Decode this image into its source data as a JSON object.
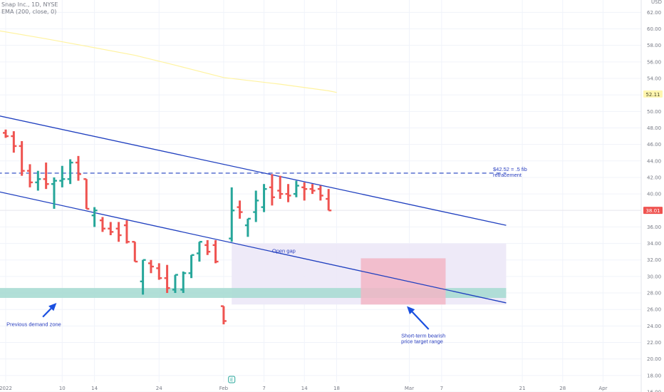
{
  "header": {
    "symbol_line": "Snap Inc., 1D, NYSE",
    "ema_line": "EMA (200, close, 0)",
    "currency": "USD"
  },
  "colors": {
    "up": "#26a69a",
    "down": "#ef5350",
    "channel": "#1f3fbf",
    "ema": "#fff3a0",
    "gap_zone": "#ece8f7",
    "demand_zone": "#a8dcd3",
    "target_zone": "#f2b6c6",
    "annotation": "#2a3fbf",
    "grid": "#f0f3fa",
    "axis_text": "#787b86"
  },
  "chart_data": {
    "type": "candlestick",
    "ylim": [
      16,
      63.5
    ],
    "y_ticks": [
      16,
      18,
      20,
      22,
      24,
      26,
      28,
      30,
      32,
      34,
      36,
      38,
      40,
      42,
      44,
      46,
      48,
      50,
      52,
      54,
      56,
      58,
      60,
      62
    ],
    "x_ticks": [
      {
        "label": "2022",
        "bar": 0
      },
      {
        "label": "10",
        "bar": 7
      },
      {
        "label": "14",
        "bar": 11
      },
      {
        "label": "24",
        "bar": 19
      },
      {
        "label": "Feb",
        "bar": 27
      },
      {
        "label": "7",
        "bar": 32
      },
      {
        "label": "14",
        "bar": 37
      },
      {
        "label": "18",
        "bar": 41
      },
      {
        "label": "Mar",
        "bar": 50
      },
      {
        "label": "7",
        "bar": 54
      },
      {
        "label": "21",
        "bar": 64
      },
      {
        "label": "28",
        "bar": 69
      },
      {
        "label": "Apr",
        "bar": 74
      }
    ],
    "bars": [
      {
        "o": 47.4,
        "h": 47.8,
        "l": 46.8,
        "c": 47.0
      },
      {
        "o": 47.0,
        "h": 47.6,
        "l": 45.0,
        "c": 45.8
      },
      {
        "o": 45.8,
        "h": 46.4,
        "l": 42.2,
        "c": 42.8
      },
      {
        "o": 42.8,
        "h": 43.6,
        "l": 40.8,
        "c": 41.4
      },
      {
        "o": 41.4,
        "h": 42.8,
        "l": 40.4,
        "c": 41.8
      },
      {
        "o": 41.8,
        "h": 43.8,
        "l": 40.6,
        "c": 41.2
      },
      {
        "o": 41.2,
        "h": 42.0,
        "l": 38.2,
        "c": 41.6
      },
      {
        "o": 41.6,
        "h": 43.4,
        "l": 40.8,
        "c": 41.8
      },
      {
        "o": 41.8,
        "h": 44.2,
        "l": 41.2,
        "c": 43.8
      },
      {
        "o": 43.8,
        "h": 44.6,
        "l": 41.6,
        "c": 42.4
      },
      {
        "o": 41.8,
        "h": 41.8,
        "l": 38.2,
        "c": 38.2
      },
      {
        "o": 37.4,
        "h": 38.4,
        "l": 36.0,
        "c": 38.0
      },
      {
        "o": 36.8,
        "h": 37.2,
        "l": 35.4,
        "c": 35.8
      },
      {
        "o": 35.8,
        "h": 36.6,
        "l": 35.0,
        "c": 35.4
      },
      {
        "o": 35.8,
        "h": 36.6,
        "l": 34.2,
        "c": 35.0
      },
      {
        "o": 36.2,
        "h": 36.8,
        "l": 34.0,
        "c": 34.2
      },
      {
        "o": 34.2,
        "h": 34.2,
        "l": 31.8,
        "c": 31.8
      },
      {
        "o": 29.4,
        "h": 32.0,
        "l": 27.8,
        "c": 32.0
      },
      {
        "o": 31.6,
        "h": 32.0,
        "l": 30.4,
        "c": 31.2
      },
      {
        "o": 31.0,
        "h": 31.6,
        "l": 29.6,
        "c": 29.8
      },
      {
        "o": 29.8,
        "h": 31.4,
        "l": 28.0,
        "c": 28.6
      },
      {
        "o": 28.4,
        "h": 30.2,
        "l": 28.0,
        "c": 30.2
      },
      {
        "o": 28.4,
        "h": 30.6,
        "l": 28.0,
        "c": 30.4
      },
      {
        "o": 30.4,
        "h": 32.6,
        "l": 29.8,
        "c": 32.6
      },
      {
        "o": 32.8,
        "h": 34.2,
        "l": 31.8,
        "c": 34.2
      },
      {
        "o": 33.8,
        "h": 34.4,
        "l": 32.6,
        "c": 33.0
      },
      {
        "o": 33.8,
        "h": 34.4,
        "l": 31.6,
        "c": 31.8
      },
      {
        "o": 26.4,
        "h": 26.4,
        "l": 24.2,
        "c": 24.6
      },
      {
        "o": 34.6,
        "h": 40.8,
        "l": 34.2,
        "c": 38.0
      },
      {
        "o": 38.4,
        "h": 39.2,
        "l": 37.0,
        "c": 37.8
      },
      {
        "o": 36.2,
        "h": 37.0,
        "l": 34.8,
        "c": 37.0
      },
      {
        "o": 37.8,
        "h": 40.4,
        "l": 36.6,
        "c": 39.2
      },
      {
        "o": 38.4,
        "h": 41.2,
        "l": 37.8,
        "c": 40.6
      },
      {
        "o": 40.8,
        "h": 42.4,
        "l": 38.6,
        "c": 39.6
      },
      {
        "o": 40.4,
        "h": 42.2,
        "l": 39.4,
        "c": 40.0
      },
      {
        "o": 40.0,
        "h": 41.2,
        "l": 39.0,
        "c": 39.8
      },
      {
        "o": 40.0,
        "h": 41.6,
        "l": 39.6,
        "c": 41.0
      },
      {
        "o": 40.8,
        "h": 41.4,
        "l": 39.2,
        "c": 40.6
      },
      {
        "o": 40.6,
        "h": 41.2,
        "l": 40.0,
        "c": 40.4
      },
      {
        "o": 40.6,
        "h": 41.0,
        "l": 39.2,
        "c": 39.8
      },
      {
        "o": 39.4,
        "h": 40.6,
        "l": 38.0,
        "c": 38.0
      }
    ],
    "ema": [
      {
        "bar": -1,
        "v": 59.8
      },
      {
        "bar": 5,
        "v": 58.8
      },
      {
        "bar": 10,
        "v": 57.9
      },
      {
        "bar": 16,
        "v": 56.8
      },
      {
        "bar": 21,
        "v": 55.6
      },
      {
        "bar": 27,
        "v": 54.1
      },
      {
        "bar": 34,
        "v": 53.3
      },
      {
        "bar": 40,
        "v": 52.5
      },
      {
        "bar": 41,
        "v": 52.3
      }
    ],
    "channel_upper": [
      {
        "bar": -1,
        "v": 49.5
      },
      {
        "bar": 62,
        "v": 36.2
      }
    ],
    "channel_lower": [
      {
        "bar": -1,
        "v": 40.3
      },
      {
        "bar": 62,
        "v": 26.8
      }
    ],
    "fib_level": {
      "value": 42.52,
      "from_bar": -1,
      "to_bar": 62,
      "label_lines": [
        "$42.52 = .5 fib",
        "retracement"
      ]
    },
    "zones": [
      {
        "name": "open-gap-zone",
        "from_bar": 28,
        "to_bar": 62,
        "top": 34.0,
        "bottom": 26.6,
        "label": "Open gap"
      },
      {
        "name": "demand-zone",
        "from_bar": -1,
        "to_bar": 62,
        "top": 28.6,
        "bottom": 27.4
      },
      {
        "name": "target-zone",
        "from_bar": 44,
        "to_bar": 54.5,
        "top": 32.2,
        "bottom": 26.6
      }
    ],
    "annotations": [
      {
        "name": "previous-demand-label",
        "lines": [
          "Previous demand zone"
        ],
        "bar": 0.1,
        "value": 24.0
      },
      {
        "name": "bearish-target-label",
        "lines": [
          "Short-term bearish",
          "price target range"
        ],
        "bar": 49,
        "value": 22.6
      }
    ],
    "arrows": [
      {
        "name": "demand-arrow",
        "from": {
          "bar": 4.6,
          "value": 25.1
        },
        "to": {
          "bar": 6.3,
          "value": 26.8
        }
      },
      {
        "name": "target-arrow",
        "from": {
          "bar": 52.4,
          "value": 23.6
        },
        "to": {
          "bar": 49.7,
          "value": 26.4
        }
      }
    ],
    "price_tags": [
      {
        "name": "ema-price-tag",
        "value": 52.11,
        "label": "52.11",
        "style": "ema"
      },
      {
        "name": "last-price-tag",
        "value": 38.01,
        "label": "38.01",
        "style": "last"
      }
    ],
    "marker": {
      "name": "earnings-marker",
      "bar": 28,
      "label": "E"
    }
  }
}
